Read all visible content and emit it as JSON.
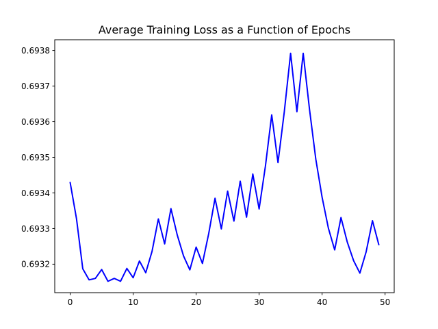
{
  "chart_data": {
    "type": "line",
    "title": "Average Training Loss as a Function of Epochs",
    "xlabel": "",
    "ylabel": "",
    "xlim": [
      -2.45,
      51.45
    ],
    "ylim": [
      0.69312,
      0.69383
    ],
    "x_ticks": [
      0,
      10,
      20,
      30,
      40,
      50
    ],
    "x_tick_labels": [
      "0",
      "10",
      "20",
      "30",
      "40",
      "50"
    ],
    "y_ticks": [
      0.6932,
      0.6933,
      0.6934,
      0.6935,
      0.6936,
      0.6937,
      0.6938
    ],
    "y_tick_labels": [
      "0.6932",
      "0.6933",
      "0.6934",
      "0.6935",
      "0.6936",
      "0.6937",
      "0.6938"
    ],
    "grid": false,
    "series": [
      {
        "color": "#0000ff",
        "x": [
          0,
          1,
          2,
          3,
          4,
          5,
          6,
          7,
          8,
          9,
          10,
          11,
          12,
          13,
          14,
          15,
          16,
          17,
          18,
          19,
          20,
          21,
          22,
          23,
          24,
          25,
          26,
          27,
          28,
          29,
          30,
          31,
          32,
          33,
          34,
          35,
          36,
          37,
          38,
          39,
          40,
          41,
          42,
          43,
          44,
          45,
          46,
          47,
          48,
          49
        ],
        "y": [
          0.693429,
          0.693328,
          0.693187,
          0.693156,
          0.69316,
          0.693185,
          0.693152,
          0.69316,
          0.693152,
          0.693188,
          0.693162,
          0.693209,
          0.693176,
          0.693236,
          0.693327,
          0.693257,
          0.693356,
          0.693282,
          0.693223,
          0.693184,
          0.693248,
          0.693202,
          0.693286,
          0.693385,
          0.693299,
          0.693405,
          0.693321,
          0.693433,
          0.693332,
          0.693453,
          0.693355,
          0.693475,
          0.693619,
          0.693485,
          0.693628,
          0.693792,
          0.693628,
          0.693792,
          0.693635,
          0.693495,
          0.693388,
          0.693301,
          0.69324,
          0.693331,
          0.693262,
          0.69321,
          0.693175,
          0.693235,
          0.693322,
          0.693255
        ]
      }
    ]
  }
}
